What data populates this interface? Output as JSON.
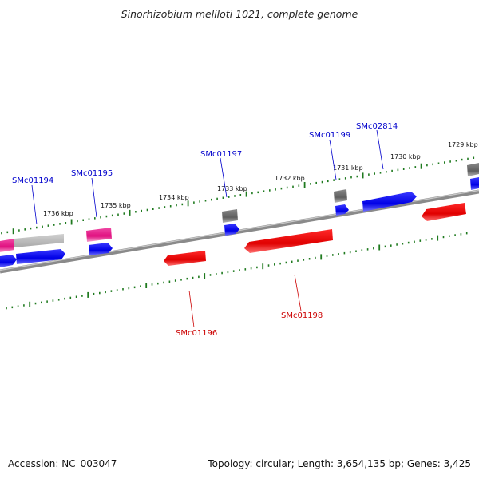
{
  "title": "Sinorhizobium meliloti 1021, complete genome",
  "accession": "Accession: NC_003047",
  "summary": "Topology: circular; Length: 3,654,135 bp; Genes: 3,425",
  "scale_labels": [
    "1736 kbp",
    "1735 kbp",
    "1734 kbp",
    "1733 kbp",
    "1732 kbp",
    "1731 kbp",
    "1730 kbp",
    "1729 kbp"
  ],
  "gene_labels": {
    "SMc01194": "SMc01194",
    "SMc01195": "SMc01195",
    "SMc01197": "SMc01197",
    "SMc01199": "SMc01199",
    "SMc02814": "SMc02814",
    "SMc01196": "SMc01196",
    "SMc01198": "SMc01198"
  },
  "colors": {
    "forward_cds": "#0000ee",
    "reverse_cds": "#ee0000",
    "rna": "#e8178b",
    "gene": "#777777",
    "tick": "#1f7a1f",
    "backbone": "#888888"
  }
}
